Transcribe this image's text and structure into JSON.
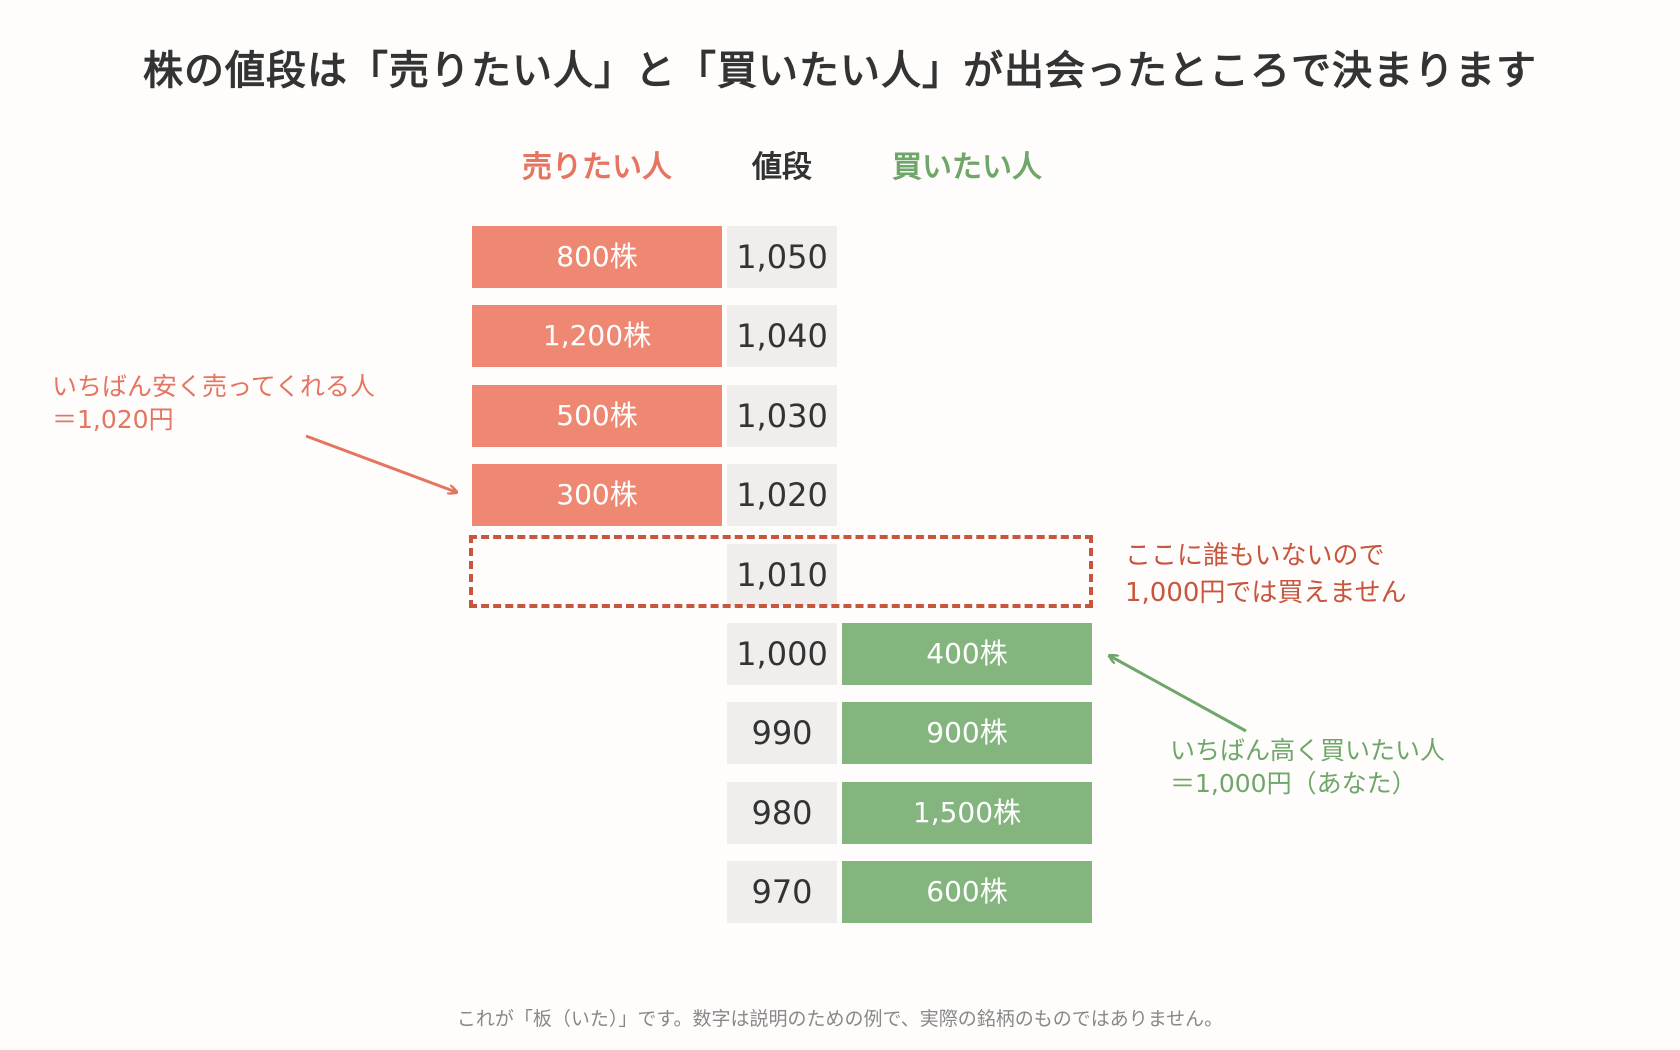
{
  "title": "株の値段は「売りたい人」と「買いたい人」が出会ったところで決まります",
  "columns": {
    "sellers": "売りたい人",
    "price": "値段",
    "buyers": "買いたい人"
  },
  "rows": [
    {
      "price": "1,050",
      "sell": "800株",
      "buy": ""
    },
    {
      "price": "1,040",
      "sell": "1,200株",
      "buy": ""
    },
    {
      "price": "1,030",
      "sell": "500株",
      "buy": ""
    },
    {
      "price": "1,020",
      "sell": "300株",
      "buy": ""
    },
    {
      "price": "1,010",
      "sell": "",
      "buy": ""
    },
    {
      "price": "1,000",
      "sell": "",
      "buy": "400株"
    },
    {
      "price": "990",
      "sell": "",
      "buy": "900株"
    },
    {
      "price": "980",
      "sell": "",
      "buy": "1,500株"
    },
    {
      "price": "970",
      "sell": "",
      "buy": "600株"
    }
  ],
  "notes": {
    "lowest_seller": [
      "いちばん安く売ってくれる人",
      "＝1,020円"
    ],
    "gap": [
      "ここに誰もいないので",
      "1,000円では買えません"
    ],
    "highest_buyer": [
      "いちばん高く買いたい人",
      "＝1,000円（あなた）"
    ]
  },
  "footer": "これが「板（いた）」です。数字は説明のための例で、実際の銘柄のものではありません。",
  "colors": {
    "sell": "#ee8872",
    "buy": "#84b57f",
    "sell_text": "#e57560",
    "buy_text": "#6fa66a",
    "gap_text": "#c8553d",
    "price_bg": "#efeeec"
  }
}
